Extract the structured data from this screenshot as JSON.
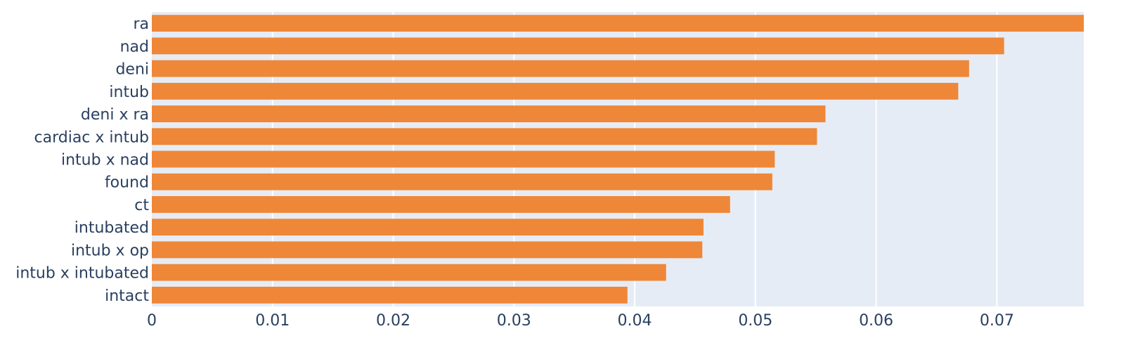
{
  "chart_data": {
    "type": "bar",
    "orientation": "horizontal",
    "categories": [
      "ra",
      "nad",
      "deni",
      "intub",
      "deni x ra",
      "cardiac x intub",
      "intub x nad",
      "found",
      "ct",
      "intubated",
      "intub x op",
      "intub x intubated",
      "intact"
    ],
    "values": [
      0.0772,
      0.0706,
      0.0677,
      0.0668,
      0.0558,
      0.0551,
      0.0516,
      0.0514,
      0.0479,
      0.0457,
      0.0456,
      0.0426,
      0.0394
    ],
    "xlim": [
      0,
      0.0772
    ],
    "xticks": [
      "0",
      "0.01",
      "0.02",
      "0.03",
      "0.04",
      "0.05",
      "0.06",
      "0.07"
    ],
    "xtick_values": [
      0,
      0.01,
      0.02,
      0.03,
      0.04,
      0.05,
      0.06,
      0.07
    ],
    "title": "",
    "xlabel": "",
    "ylabel": "",
    "grid": true,
    "legend": "none",
    "colors": {
      "bar": "#ef8738",
      "plot_background": "#e5ecf6",
      "grid": "#ffffff",
      "text": "#2a3f5f"
    }
  }
}
